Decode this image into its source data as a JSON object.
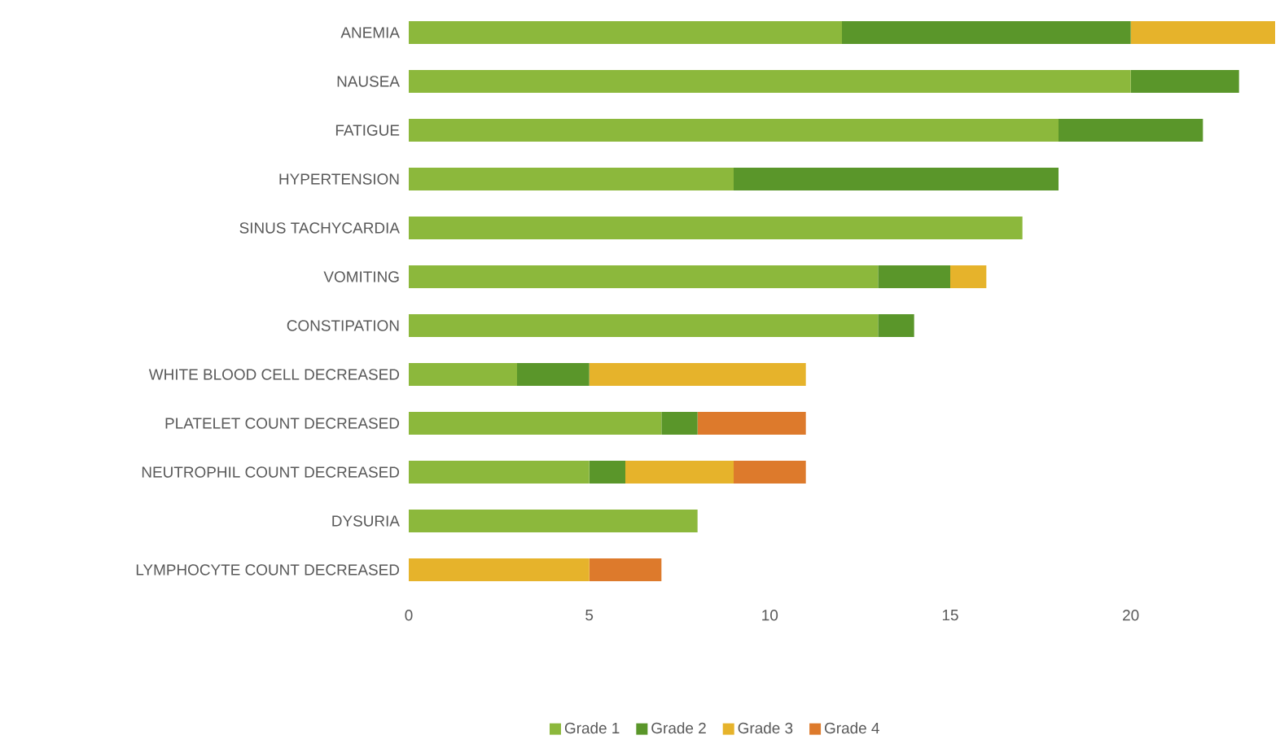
{
  "chart_data": {
    "type": "bar",
    "orientation": "horizontal",
    "stacked": true,
    "categories": [
      "ANEMIA",
      "NAUSEA",
      "FATIGUE",
      "HYPERTENSION",
      "SINUS TACHYCARDIA",
      "VOMITING",
      "CONSTIPATION",
      "WHITE BLOOD CELL DECREASED",
      "PLATELET COUNT DECREASED",
      "NEUTROPHIL COUNT DECREASED",
      "DYSURIA",
      "LYMPHOCYTE COUNT DECREASED"
    ],
    "series": [
      {
        "name": "Grade 1",
        "color": "#8cb83c",
        "values": [
          12,
          20,
          18,
          9,
          17,
          13,
          13,
          3,
          7,
          5,
          8,
          0
        ]
      },
      {
        "name": "Grade 2",
        "color": "#5a962a",
        "values": [
          8,
          3,
          4,
          9,
          0,
          2,
          1,
          2,
          1,
          1,
          0,
          0
        ]
      },
      {
        "name": "Grade 3",
        "color": "#e6b32b",
        "values": [
          4,
          0,
          0,
          0,
          0,
          1,
          0,
          6,
          0,
          3,
          0,
          5
        ]
      },
      {
        "name": "Grade 4",
        "color": "#dd7a2c",
        "values": [
          0,
          0,
          0,
          0,
          0,
          0,
          0,
          0,
          3,
          2,
          0,
          2
        ]
      }
    ],
    "xlim": [
      0,
      24
    ],
    "xticks": [
      0,
      5,
      10,
      15,
      20
    ],
    "grid": false,
    "legend": "bottom"
  }
}
